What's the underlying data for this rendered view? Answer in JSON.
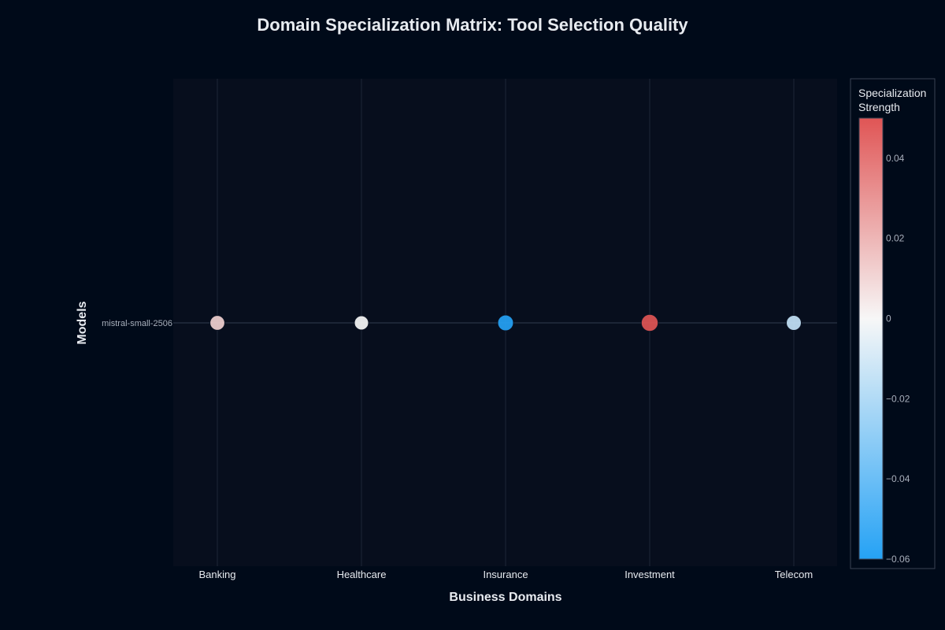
{
  "chart_data": {
    "type": "scatter",
    "title": "Domain Specialization Matrix: Tool Selection Quality",
    "xlabel": "Business Domains",
    "ylabel": "Models",
    "categories": [
      "Banking",
      "Healthcare",
      "Insurance",
      "Investment",
      "Telecom"
    ],
    "models": [
      "mistral-small-2506"
    ],
    "series": [
      {
        "name": "mistral-small-2506",
        "values": [
          0.012,
          0.0,
          -0.06,
          0.05,
          -0.015
        ]
      }
    ],
    "colorbar": {
      "title_lines": [
        "Specialization",
        "Strength"
      ],
      "min": -0.06,
      "max": 0.05,
      "ticks": [
        0.04,
        0.02,
        0,
        -0.02,
        -0.04,
        -0.06
      ],
      "tick_labels": [
        "0.04",
        "0.02",
        "0",
        "−0.02",
        "−0.04",
        "−0.06"
      ],
      "colors": {
        "low": "#25a2f5",
        "mid": "#f7f7f7",
        "high": "#e05555"
      }
    },
    "grid": true,
    "colors": {
      "background": "#000a19",
      "plot_background": "#070e1d",
      "grid": "#1c2536",
      "text": "#e8ebf0",
      "tick_text": "#a8afbb"
    }
  }
}
